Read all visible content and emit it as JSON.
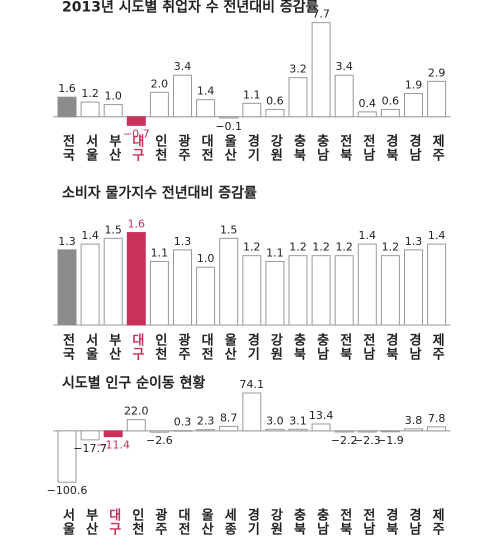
{
  "chart_data": [
    {
      "type": "bar",
      "title": "2013년 시도별 취업자 수 전년대비 증감률",
      "categories": [
        "전국",
        "서울",
        "부산",
        "대구",
        "인천",
        "광주",
        "대전",
        "울산",
        "경기",
        "강원",
        "충북",
        "충남",
        "전북",
        "전남",
        "경북",
        "경남",
        "제주"
      ],
      "values": [
        1.6,
        1.2,
        1.0,
        -0.7,
        2.0,
        3.4,
        1.4,
        -0.1,
        1.1,
        0.6,
        3.2,
        7.7,
        3.4,
        0.4,
        0.6,
        1.9,
        2.9
      ],
      "value_labels": [
        "1.6",
        "1.2",
        "1.0",
        "−0.7",
        "2.0",
        "3.4",
        "1.4",
        "−0.1",
        "1.1",
        "0.6",
        "3.2",
        "7.7",
        "3.4",
        "0.4",
        "0.6",
        "1.9",
        "2.9"
      ],
      "colors": [
        "#8c8c8c",
        "#ffffff",
        "#ffffff",
        "#c8325a",
        "#ffffff",
        "#ffffff",
        "#ffffff",
        "#ffffff",
        "#ffffff",
        "#ffffff",
        "#ffffff",
        "#ffffff",
        "#ffffff",
        "#ffffff",
        "#ffffff",
        "#ffffff",
        "#ffffff"
      ],
      "ylim": [
        -1,
        8
      ]
    },
    {
      "type": "bar",
      "title": "소비자 물가지수 전년대비 증감률",
      "categories": [
        "전국",
        "서울",
        "부산",
        "대구",
        "인천",
        "광주",
        "대전",
        "울산",
        "경기",
        "강원",
        "충북",
        "충남",
        "전북",
        "전남",
        "경북",
        "경남",
        "제주"
      ],
      "values": [
        1.3,
        1.4,
        1.5,
        1.6,
        1.1,
        1.3,
        1.0,
        1.5,
        1.2,
        1.1,
        1.2,
        1.2,
        1.2,
        1.4,
        1.2,
        1.3,
        1.4
      ],
      "value_labels": [
        "1.3",
        "1.4",
        "1.5",
        "1.6",
        "1.1",
        "1.3",
        "1.0",
        "1.5",
        "1.2",
        "1.1",
        "1.2",
        "1.2",
        "1.2",
        "1.4",
        "1.2",
        "1.3",
        "1.4"
      ],
      "colors": [
        "#8c8c8c",
        "#ffffff",
        "#ffffff",
        "#c8325a",
        "#ffffff",
        "#ffffff",
        "#ffffff",
        "#ffffff",
        "#ffffff",
        "#ffffff",
        "#ffffff",
        "#ffffff",
        "#ffffff",
        "#ffffff",
        "#ffffff",
        "#ffffff",
        "#ffffff"
      ],
      "ylim": [
        0,
        1.8
      ]
    },
    {
      "type": "bar",
      "title": "시도별 인구 순이동 현황",
      "categories": [
        "서울",
        "부산",
        "대구",
        "인천",
        "광주",
        "대전",
        "울산",
        "세종",
        "경기",
        "강원",
        "충북",
        "충남",
        "전북",
        "전남",
        "경북",
        "경남",
        "제주"
      ],
      "values": [
        -100.6,
        -17.7,
        -11.4,
        22.0,
        -2.6,
        0.3,
        2.3,
        8.7,
        74.1,
        3.0,
        3.1,
        13.4,
        -2.2,
        -2.3,
        -1.9,
        3.8,
        7.8
      ],
      "value_labels": [
        "−100.6",
        "−17.7",
        "−11.4",
        "22.0",
        "−2.6",
        "0.3",
        "2.3",
        "8.7",
        "74.1",
        "3.0",
        "3.1",
        "13.4",
        "−2.2",
        "−2.3",
        "−1.9",
        "3.8",
        "7.8"
      ],
      "colors": [
        "#ffffff",
        "#ffffff",
        "#c8325a",
        "#ffffff",
        "#ffffff",
        "#ffffff",
        "#ffffff",
        "#ffffff",
        "#ffffff",
        "#ffffff",
        "#ffffff",
        "#ffffff",
        "#ffffff",
        "#ffffff",
        "#ffffff",
        "#ffffff",
        "#ffffff"
      ],
      "ylim": [
        -110,
        80
      ]
    }
  ]
}
